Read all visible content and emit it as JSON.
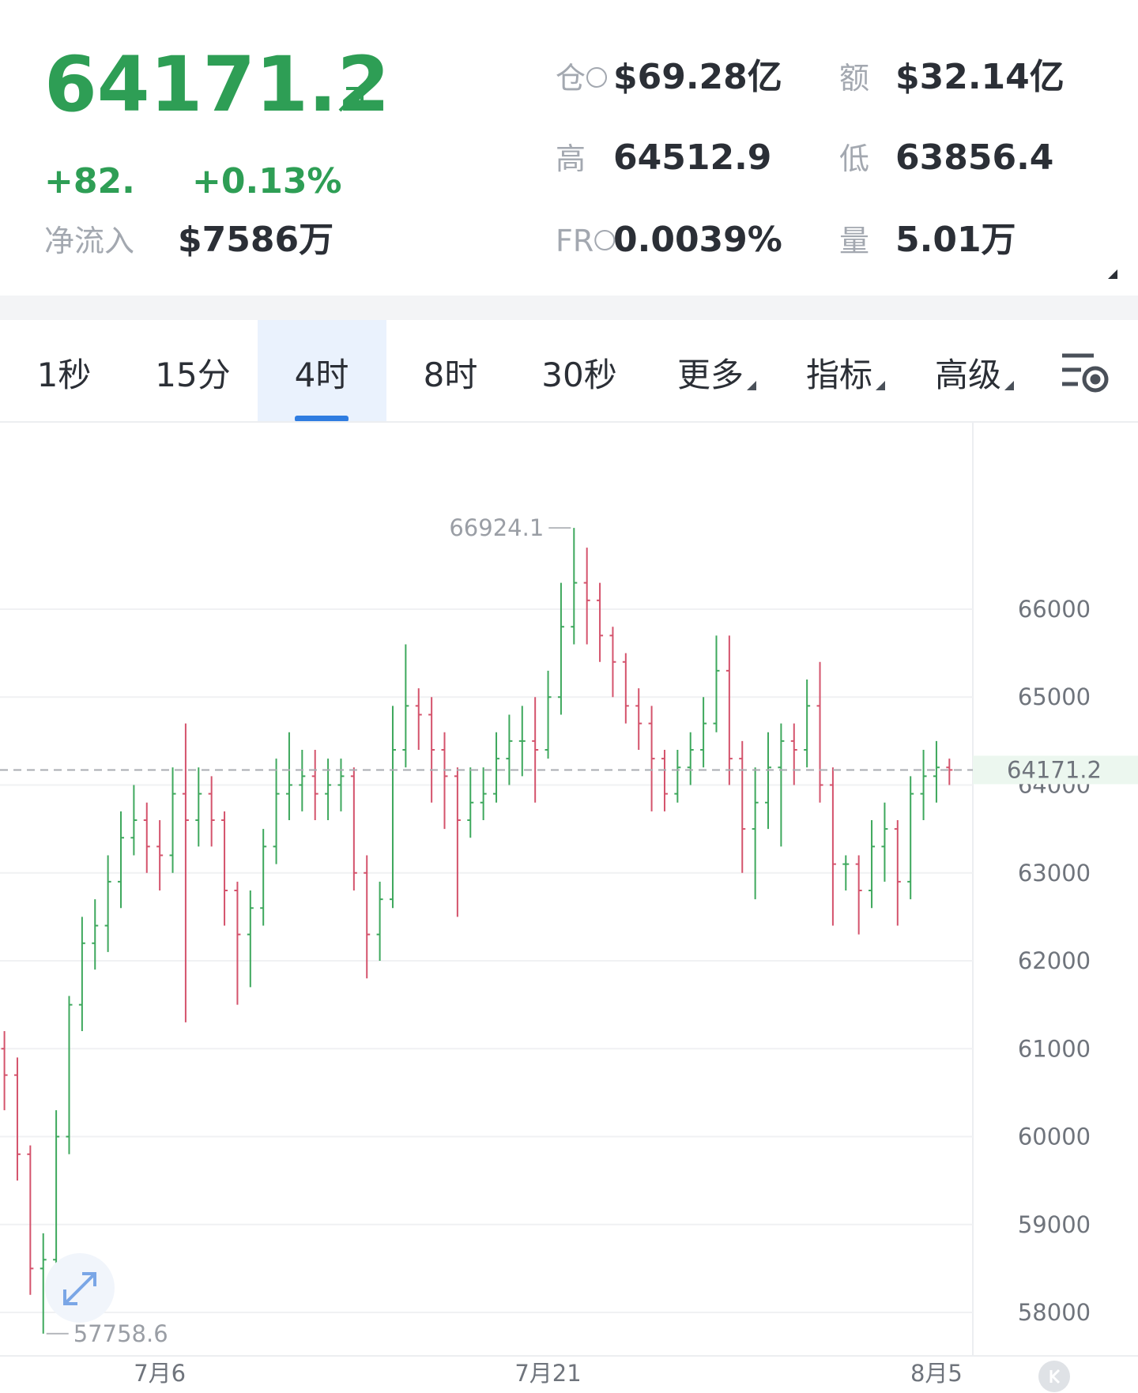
{
  "header": {
    "price": "64171.2",
    "change": "+82.",
    "change_pct": "+0.13%",
    "net_inflow_label": "净流入",
    "net_inflow": "$7586万",
    "stats": [
      {
        "label": "仓",
        "value": "$69.28亿"
      },
      {
        "label": "额",
        "value": "$32.14亿"
      },
      {
        "label": "高",
        "value": "64512.9"
      },
      {
        "label": "低",
        "value": "63856.4"
      },
      {
        "label": "FR",
        "value": "0.0039%"
      },
      {
        "label": "量",
        "value": "5.01万"
      }
    ]
  },
  "tabs": [
    "1秒",
    "15分",
    "4时",
    "8时",
    "30秒",
    "更多",
    "指标",
    "高级"
  ],
  "active_tab": 2,
  "chart_data": {
    "type": "ohlc",
    "up_color": "#3ea85d",
    "down_color": "#d4536c",
    "categories": [
      null,
      null,
      null,
      null,
      null,
      null,
      null,
      null,
      null,
      null,
      null,
      null,
      "7月6",
      null,
      null,
      null,
      null,
      null,
      null,
      null,
      null,
      null,
      null,
      null,
      null,
      null,
      null,
      null,
      null,
      null,
      null,
      null,
      null,
      null,
      null,
      null,
      null,
      null,
      null,
      null,
      null,
      null,
      "7月21",
      null,
      null,
      null,
      null,
      null,
      null,
      null,
      null,
      null,
      null,
      null,
      null,
      null,
      null,
      null,
      null,
      null,
      null,
      null,
      null,
      null,
      null,
      null,
      null,
      null,
      null,
      null,
      null,
      null,
      "8月5",
      null
    ],
    "open": [
      61000,
      60700,
      59800,
      58500,
      58600,
      60000,
      61500,
      62200,
      62400,
      62900,
      63400,
      63600,
      63300,
      63200,
      63900,
      63600,
      63900,
      63600,
      62800,
      62300,
      62600,
      63300,
      63900,
      64000,
      64100,
      63900,
      64000,
      64100,
      63000,
      62300,
      62700,
      64400,
      64900,
      64800,
      64400,
      64100,
      63600,
      63800,
      63900,
      64300,
      64500,
      64500,
      64400,
      65000,
      65800,
      66300,
      66100,
      65700,
      65400,
      64900,
      64700,
      64300,
      63900,
      64200,
      64400,
      64700,
      65300,
      64300,
      63500,
      63800,
      64200,
      64500,
      64400,
      64900,
      64000,
      63100,
      63100,
      62800,
      63300,
      63500,
      62900,
      63900,
      64100,
      64200
    ],
    "high": [
      61200,
      60900,
      59900,
      58900,
      60300,
      61600,
      62500,
      62700,
      63200,
      63700,
      64000,
      63800,
      63600,
      64200,
      64700,
      64200,
      64100,
      63700,
      62900,
      62800,
      63500,
      64300,
      64600,
      64400,
      64400,
      64300,
      64300,
      64200,
      63200,
      62900,
      64900,
      65600,
      65100,
      65000,
      64600,
      64200,
      64200,
      64200,
      64600,
      64800,
      64900,
      65000,
      65300,
      66300,
      66924.1,
      66700,
      66300,
      65800,
      65500,
      65100,
      64900,
      64400,
      64400,
      64600,
      65000,
      65700,
      65700,
      64500,
      64200,
      64600,
      64700,
      64700,
      65200,
      65400,
      64200,
      63200,
      63200,
      63600,
      63800,
      63600,
      64100,
      64400,
      64500,
      64300
    ],
    "low": [
      60300,
      59500,
      58200,
      57758.6,
      58400,
      59800,
      61200,
      61900,
      62100,
      62600,
      63200,
      63000,
      62800,
      63000,
      61300,
      63300,
      63300,
      62400,
      61500,
      61700,
      62400,
      63100,
      63600,
      63700,
      63600,
      63600,
      63700,
      62800,
      61800,
      62000,
      62600,
      64200,
      64400,
      63800,
      63500,
      62500,
      63400,
      63600,
      63800,
      64000,
      64100,
      63800,
      64300,
      64800,
      65600,
      65600,
      65400,
      65000,
      64700,
      64400,
      63700,
      63700,
      63800,
      64000,
      64200,
      64600,
      64000,
      63000,
      62700,
      63500,
      63300,
      64000,
      64200,
      63800,
      62400,
      62800,
      62300,
      62600,
      62900,
      62400,
      62700,
      63600,
      63800,
      64000
    ],
    "close": [
      60700,
      59800,
      58500,
      58600,
      60000,
      61500,
      62200,
      62400,
      62900,
      63400,
      63600,
      63300,
      63200,
      63900,
      63600,
      63900,
      63600,
      62800,
      62300,
      62600,
      63300,
      63900,
      64000,
      64100,
      63900,
      64000,
      64100,
      63000,
      62300,
      62700,
      64400,
      64900,
      64800,
      64400,
      64100,
      63600,
      63800,
      63900,
      64300,
      64500,
      64500,
      64400,
      65000,
      65800,
      66300,
      66100,
      65700,
      65400,
      64900,
      64700,
      64300,
      63900,
      64200,
      64400,
      64700,
      65300,
      64300,
      63500,
      63800,
      64200,
      64500,
      64400,
      64900,
      64000,
      63100,
      63100,
      62800,
      63300,
      63500,
      62900,
      63900,
      64100,
      64200,
      64171.2
    ],
    "ylim": [
      57506,
      68130
    ],
    "yticks": [
      58000,
      59000,
      60000,
      61000,
      62000,
      63000,
      64000,
      65000,
      66000
    ],
    "grid": true
  }
}
